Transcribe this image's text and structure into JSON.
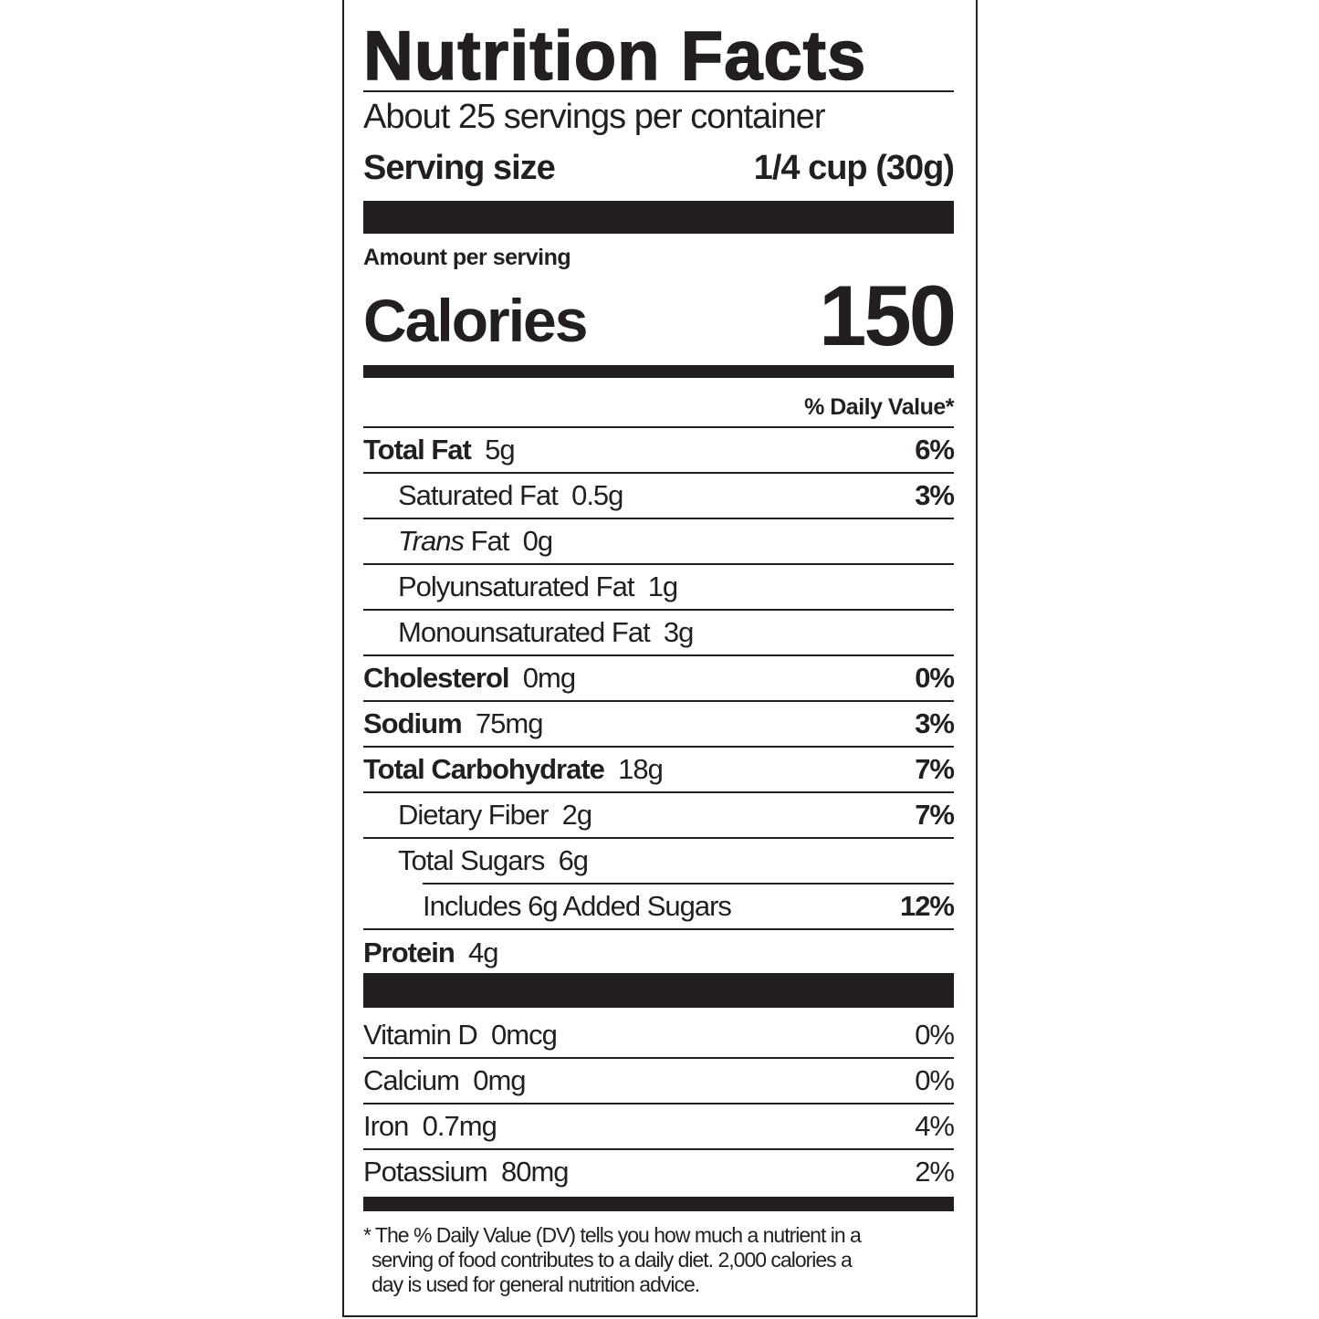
{
  "title": "Nutrition Facts",
  "servings_per_container": "About 25 servings per container",
  "serving_size": {
    "label": "Serving size",
    "value": "1/4 cup (30g)"
  },
  "amount_per_serving": "Amount per serving",
  "calories": {
    "label": "Calories",
    "value": "150"
  },
  "daily_value_header": "% Daily Value*",
  "nutrients": [
    {
      "name": "Total Fat",
      "amount": "5g",
      "dv": "6%",
      "bold": true,
      "indent": 0
    },
    {
      "name": "Saturated Fat",
      "amount": "0.5g",
      "dv": "3%",
      "bold": false,
      "indent": 1
    },
    {
      "name": "Trans",
      "name_suffix": " Fat",
      "amount": "0g",
      "dv": "",
      "bold": false,
      "indent": 1,
      "italic_name": true
    },
    {
      "name": "Polyunsaturated Fat",
      "amount": "1g",
      "dv": "",
      "bold": false,
      "indent": 1
    },
    {
      "name": "Monounsaturated Fat",
      "amount": "3g",
      "dv": "",
      "bold": false,
      "indent": 1
    },
    {
      "name": "Cholesterol",
      "amount": "0mg",
      "dv": "0%",
      "bold": true,
      "indent": 0
    },
    {
      "name": "Sodium",
      "amount": "75mg",
      "dv": "3%",
      "bold": true,
      "indent": 0
    },
    {
      "name": "Total Carbohydrate",
      "amount": "18g",
      "dv": "7%",
      "bold": true,
      "indent": 0
    },
    {
      "name": "Dietary Fiber",
      "amount": "2g",
      "dv": "7%",
      "bold": false,
      "indent": 1
    },
    {
      "name": "Total Sugars",
      "amount": "6g",
      "dv": "",
      "bold": false,
      "indent": 1
    },
    {
      "name": "Includes 6g Added Sugars",
      "amount": "",
      "dv": "12%",
      "bold": false,
      "indent": 2
    },
    {
      "name": "Protein",
      "amount": "4g",
      "dv": "",
      "bold": true,
      "indent": 0
    }
  ],
  "vitamins": [
    {
      "name": "Vitamin D",
      "amount": "0mcg",
      "dv": "0%"
    },
    {
      "name": "Calcium",
      "amount": "0mg",
      "dv": "0%"
    },
    {
      "name": "Iron",
      "amount": "0.7mg",
      "dv": "4%"
    },
    {
      "name": "Potassium",
      "amount": "80mg",
      "dv": "2%"
    }
  ],
  "footnote": [
    "* The % Daily Value (DV) tells you how much a nutrient in a",
    "serving of food contributes to a daily diet. 2,000 calories a",
    "day is used for general nutrition advice."
  ]
}
